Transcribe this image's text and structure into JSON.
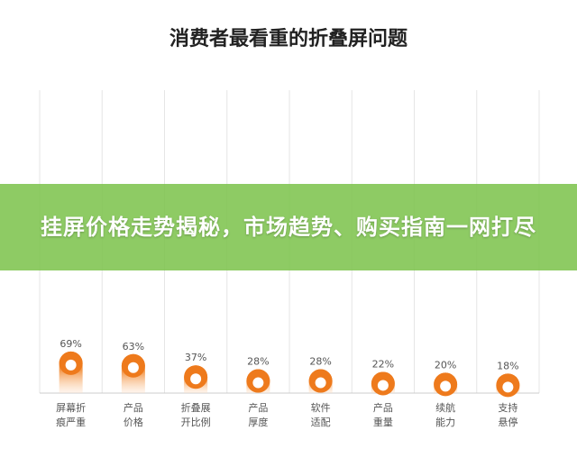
{
  "overlay": {
    "headline": "挂屏价格走势揭秘，市场趋势、购买指南一网打尽"
  },
  "colors": {
    "bar_top": "#ee7a1c",
    "bar_fade": "#fde3cc",
    "grid": "#e6e6e6",
    "text": "#555555",
    "title": "#222222",
    "banner": "#7ec44e"
  },
  "chart_data": {
    "type": "bar",
    "title": "消费者最看重的折叠屏问题",
    "xlabel": "",
    "ylabel": "",
    "ylim": [
      0,
      70
    ],
    "grid": true,
    "categories": [
      [
        "屏幕折",
        "痕严重"
      ],
      [
        "产品",
        "价格"
      ],
      [
        "折叠展",
        "开比例"
      ],
      [
        "产品",
        "厚度"
      ],
      [
        "软件",
        "适配"
      ],
      [
        "产品",
        "重量"
      ],
      [
        "续航",
        "能力"
      ],
      [
        "支持",
        "悬停"
      ]
    ],
    "values": [
      69,
      63,
      37,
      28,
      28,
      22,
      20,
      18
    ],
    "value_labels": [
      "69%",
      "63%",
      "37%",
      "28%",
      "28%",
      "22%",
      "20%",
      "18%"
    ]
  }
}
